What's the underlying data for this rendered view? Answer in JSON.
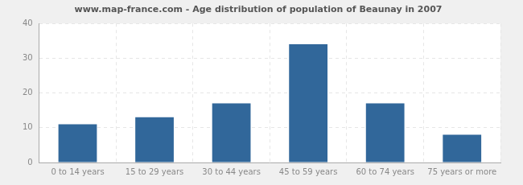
{
  "chart_data": {
    "type": "bar",
    "title": "www.map-france.com - Age distribution of population of Beaunay in 2007",
    "categories": [
      "0 to 14 years",
      "15 to 29 years",
      "30 to 44 years",
      "45 to 59 years",
      "60 to 74 years",
      "75 years or more"
    ],
    "values": [
      11,
      13,
      17,
      34,
      17,
      8
    ],
    "color": "#31679a",
    "ylim": [
      0,
      40
    ],
    "yticks": [
      0,
      10,
      20,
      30,
      40
    ],
    "grid": true
  }
}
